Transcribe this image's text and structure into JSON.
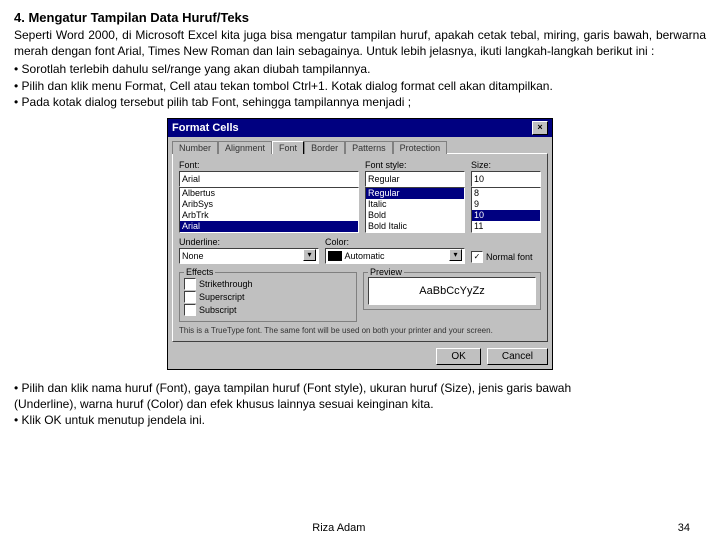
{
  "heading": "4. Mengatur Tampilan Data Huruf/Teks",
  "para1": "Seperti Word 2000, di Microsoft Excel kita juga bisa mengatur tampilan huruf, apakah cetak tebal, miring, garis bawah, berwarna merah dengan font Arial, Times New Roman dan lain sebagainya. Untuk lebih jelasnya, ikuti langkah-langkah berikut ini :",
  "bullets": {
    "b1": "• Sorotlah terlebih dahulu sel/range yang akan diubah tampilannya.",
    "b2": "• Pilih dan klik menu Format, Cell atau tekan tombol Ctrl+1. Kotak dialog format cell akan ditampilkan.",
    "b3": "• Pada kotak dialog tersebut pilih tab Font, sehingga tampilannya menjadi ;"
  },
  "dialog": {
    "title": "Format Cells",
    "tabs": {
      "t1": "Number",
      "t2": "Alignment",
      "t3": "Font",
      "t4": "Border",
      "t5": "Patterns",
      "t6": "Protection"
    },
    "labels": {
      "font": "Font:",
      "style": "Font style:",
      "size": "Size:",
      "underline": "Underline:",
      "color": "Color:",
      "normal": "Normal font",
      "effects": "Effects",
      "preview": "Preview"
    },
    "font_value": "Arial",
    "font_list": {
      "i1": "Albertus",
      "i2": "AribSys",
      "i3": "ArbTrk",
      "i4": "Arial"
    },
    "style_value": "Regular",
    "style_list": {
      "i1": "Regular",
      "i2": "Italic",
      "i3": "Bold",
      "i4": "Bold Italic"
    },
    "size_value": "10",
    "size_list": {
      "i1": "8",
      "i2": "9",
      "i3": "10",
      "i4": "11"
    },
    "underline_value": "None",
    "color_value": "Automatic",
    "effects": {
      "e1": "Strikethrough",
      "e2": "Superscript",
      "e3": "Subscript"
    },
    "preview_text": "AaBbCcYyZz",
    "hint": "This is a TrueType font. The same font will be used on both your printer and your screen.",
    "buttons": {
      "ok": "OK",
      "cancel": "Cancel"
    },
    "normal_checked": "✓"
  },
  "para2_l1": "• Pilih dan klik nama huruf (Font), gaya tampilan huruf (Font style), ukuran huruf (Size), jenis garis bawah",
  "para2_l2": "   (Underline), warna huruf (Color) dan efek khusus lainnya sesuai keinginan kita.",
  "para2_l3": "• Klik OK untuk menutup jendela ini.",
  "footer": {
    "author": "Riza Adam",
    "page": "34"
  }
}
